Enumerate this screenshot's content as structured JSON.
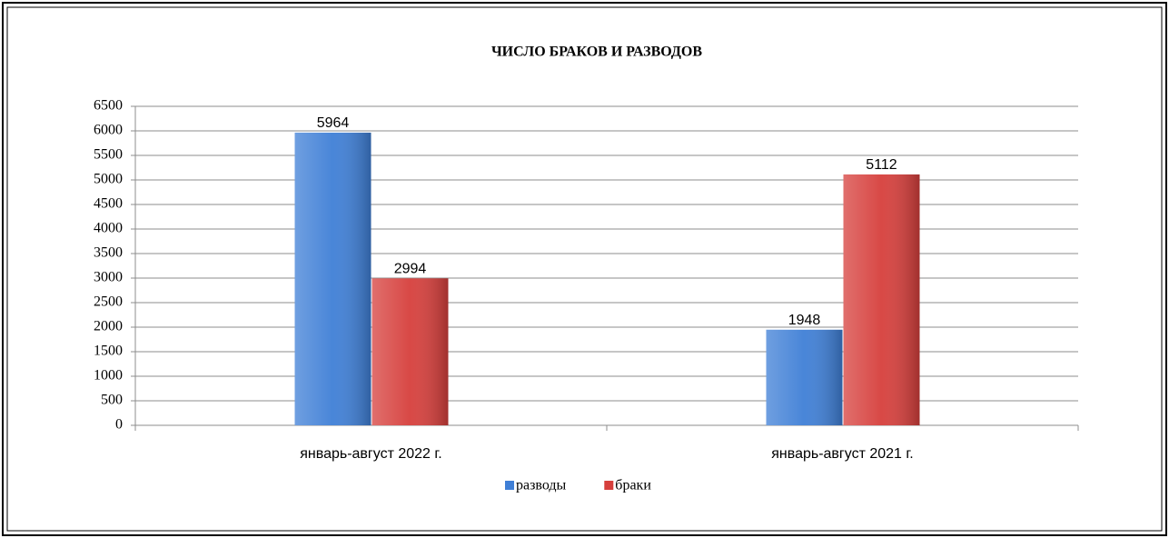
{
  "chart_data": {
    "type": "bar",
    "title": "ЧИСЛО БРАКОВ И РАЗВОДОВ",
    "categories": [
      "январь-август 2022 г.",
      "январь-август 2021 г."
    ],
    "series": [
      {
        "name": "разводы",
        "color": "#3f7fd6",
        "values": [
          5964,
          1948
        ]
      },
      {
        "name": "браки",
        "color": "#d63f3c",
        "values": [
          2994,
          5112
        ]
      }
    ],
    "ylim": [
      0,
      6500
    ],
    "yticks": [
      0,
      500,
      1000,
      1500,
      2000,
      2500,
      3000,
      3500,
      4000,
      4500,
      5000,
      5500,
      6000,
      6500
    ],
    "grid": true,
    "legend": "bottom"
  }
}
